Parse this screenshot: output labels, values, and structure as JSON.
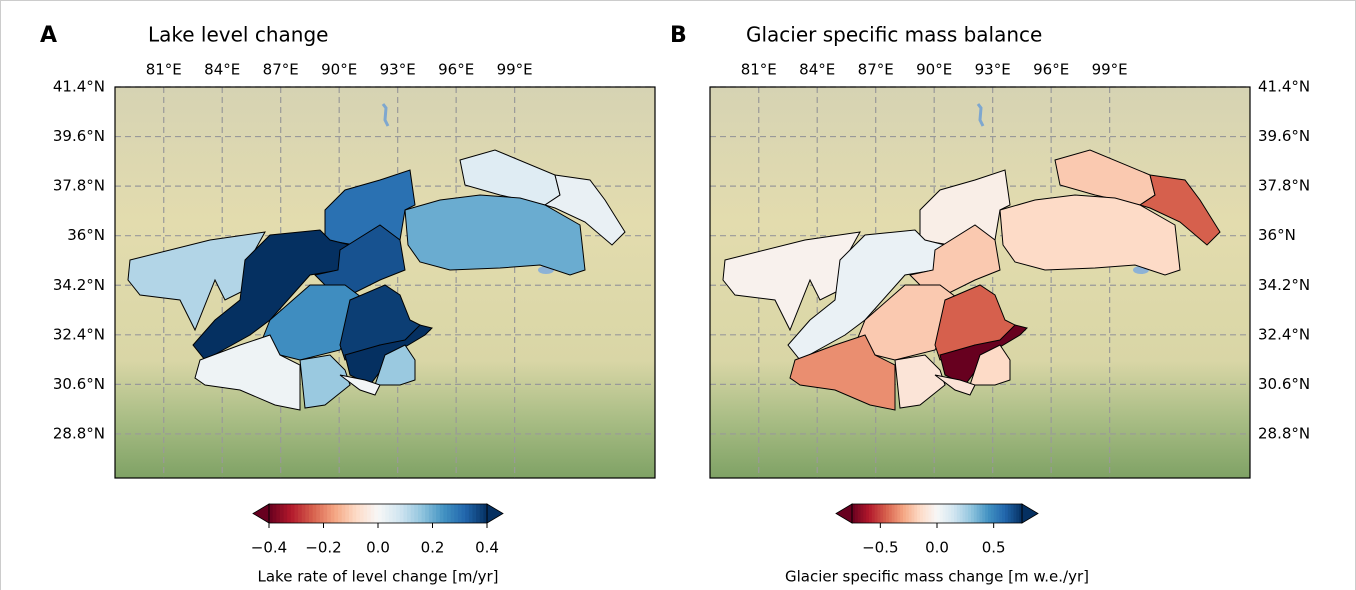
{
  "colormap": [
    "#67001f",
    "#b2182b",
    "#d6604d",
    "#f4a582",
    "#fddbc7",
    "#f7f7f7",
    "#d1e5f0",
    "#92c5de",
    "#4393c3",
    "#2166ac",
    "#053061"
  ],
  "panels": [
    {
      "letter": "A",
      "title": "Lake level change",
      "lon": {
        "lim": [
          78.5,
          106.2
        ],
        "ticks": [
          {
            "value": 81,
            "label": "81°E"
          },
          {
            "value": 84,
            "label": "84°E"
          },
          {
            "value": 87,
            "label": "87°E"
          },
          {
            "value": 90,
            "label": "90°E"
          },
          {
            "value": 93,
            "label": "93°E"
          },
          {
            "value": 96,
            "label": "96°E"
          },
          {
            "value": 99,
            "label": "99°E"
          }
        ]
      },
      "lat": {
        "lim": [
          27.2,
          41.4
        ],
        "ticks": [
          {
            "value": 41.4,
            "label": "41.4°N"
          },
          {
            "value": 39.6,
            "label": "39.6°N"
          },
          {
            "value": 37.8,
            "label": "37.8°N"
          },
          {
            "value": 36,
            "label": "36°N"
          },
          {
            "value": 34.2,
            "label": "34.2°N"
          },
          {
            "value": 32.4,
            "label": "32.4°N"
          },
          {
            "value": 30.6,
            "label": "30.6°N"
          },
          {
            "value": 28.8,
            "label": "28.8°N"
          }
        ]
      },
      "region_values": [
        0.05,
        0.03,
        0.2,
        0.3,
        0.12,
        0.4,
        0.35,
        0.25,
        0.38,
        0.45,
        0.15,
        0.02,
        0.15,
        0.01
      ],
      "colorbar": {
        "lim": [
          -0.4,
          0.4
        ],
        "ticks": [
          {
            "value": -0.4,
            "label": "−0.4"
          },
          {
            "value": -0.2,
            "label": "−0.2"
          },
          {
            "value": 0,
            "label": "0.0"
          },
          0.2,
          0.4
        ],
        "label": "Lake rate of level change [m/yr]"
      }
    },
    {
      "letter": "B",
      "title": "Glacier specific mass balance",
      "lon": {
        "lim": [
          78.5,
          106.2
        ],
        "ticks": [
          {
            "value": 81,
            "label": "81°E"
          },
          {
            "value": 84,
            "label": "84°E"
          },
          {
            "value": 87,
            "label": "87°E"
          },
          {
            "value": 90,
            "label": "90°E"
          },
          {
            "value": 93,
            "label": "93°E"
          },
          {
            "value": 96,
            "label": "96°E"
          },
          {
            "value": 99,
            "label": "99°E"
          }
        ]
      },
      "lat": {
        "lim": [
          27.2,
          41.4
        ],
        "ticks": [
          {
            "value": 41.4,
            "label": "41.4°N"
          },
          {
            "value": 39.6,
            "label": "39.6°N"
          },
          {
            "value": 37.8,
            "label": "37.8°N"
          },
          {
            "value": 36,
            "label": "36°N"
          },
          {
            "value": 34.2,
            "label": "34.2°N"
          },
          {
            "value": 32.4,
            "label": "32.4°N"
          },
          {
            "value": 30.6,
            "label": "30.6°N"
          },
          {
            "value": 28.8,
            "label": "28.8°N"
          }
        ]
      },
      "region_values": [
        -0.2,
        -0.45,
        -0.15,
        -0.05,
        -0.03,
        0.05,
        -0.2,
        -0.2,
        -0.45,
        -0.8,
        -0.15,
        -0.35,
        -0.1,
        -0.1
      ],
      "colorbar": {
        "lim": [
          -0.75,
          0.75
        ],
        "ticks": [
          {
            "value": -0.5,
            "label": "−0.5"
          },
          {
            "value": 0,
            "label": "0.0"
          },
          0.5
        ],
        "label": "Glacier specific mass change [m w.e./yr]"
      }
    }
  ]
}
